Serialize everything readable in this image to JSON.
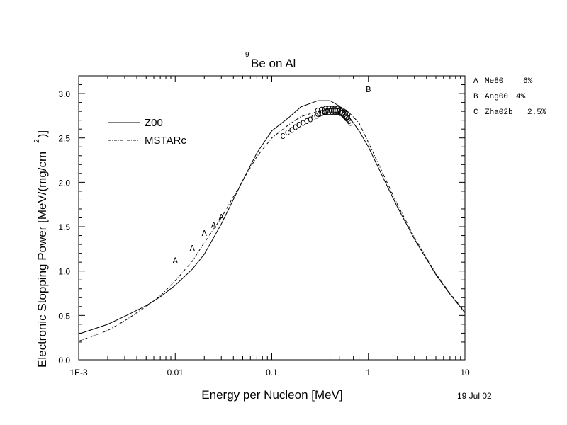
{
  "chart_data": {
    "type": "line",
    "title_sup": "9",
    "title": "Be on Al",
    "xlabel": "Energy per Nucleon [MeV]",
    "ylabel_main": "Electronic Stopping Power [MeV/(mg/cm",
    "ylabel_sup": "2",
    "ylabel_close": ")]",
    "x_scale": "log",
    "xlim": [
      0.001,
      10
    ],
    "ylim": [
      0.0,
      3.2
    ],
    "x_ticks": [
      {
        "value": 0.001,
        "label": "1E-3"
      },
      {
        "value": 0.01,
        "label": "0.01"
      },
      {
        "value": 0.1,
        "label": "0.1"
      },
      {
        "value": 1,
        "label": "1"
      },
      {
        "value": 10,
        "label": "10"
      }
    ],
    "y_ticks": [
      {
        "value": 0.0,
        "label": "0.0"
      },
      {
        "value": 0.5,
        "label": "0.5"
      },
      {
        "value": 1.0,
        "label": "1.0"
      },
      {
        "value": 1.5,
        "label": "1.5"
      },
      {
        "value": 2.0,
        "label": "2.0"
      },
      {
        "value": 2.5,
        "label": "2.5"
      },
      {
        "value": 3.0,
        "label": "3.0"
      }
    ],
    "date": "19 Jul 02",
    "legend_placement": "top-left",
    "series": [
      {
        "name": "Z00",
        "style": "solid",
        "x": [
          0.001,
          0.002,
          0.003,
          0.005,
          0.007,
          0.01,
          0.015,
          0.02,
          0.03,
          0.05,
          0.07,
          0.1,
          0.15,
          0.2,
          0.3,
          0.4,
          0.5,
          0.6,
          0.8,
          1.0,
          1.5,
          2.0,
          3.0,
          5.0,
          7.0,
          10.0
        ],
        "y": [
          0.29,
          0.4,
          0.49,
          0.61,
          0.71,
          0.84,
          1.02,
          1.19,
          1.53,
          2.02,
          2.33,
          2.58,
          2.73,
          2.85,
          2.92,
          2.92,
          2.86,
          2.77,
          2.58,
          2.4,
          2.0,
          1.72,
          1.36,
          0.96,
          0.74,
          0.53
        ]
      },
      {
        "name": "MSTARc",
        "style": "dash-dot",
        "x": [
          0.001,
          0.002,
          0.003,
          0.005,
          0.007,
          0.01,
          0.015,
          0.02,
          0.03,
          0.05,
          0.07,
          0.1,
          0.15,
          0.2,
          0.3,
          0.4,
          0.5,
          0.6,
          0.8,
          1.0,
          1.5,
          2.0,
          3.0,
          5.0,
          7.0,
          10.0
        ],
        "y": [
          0.21,
          0.33,
          0.44,
          0.6,
          0.72,
          0.89,
          1.11,
          1.32,
          1.6,
          2.02,
          2.29,
          2.5,
          2.65,
          2.74,
          2.8,
          2.83,
          2.84,
          2.81,
          2.67,
          2.45,
          2.04,
          1.75,
          1.38,
          0.97,
          0.75,
          0.54
        ]
      }
    ],
    "datasets": [
      {
        "marker": "A",
        "ref": "Me80",
        "error": "6%",
        "x": [
          0.01,
          0.015,
          0.02,
          0.025,
          0.03
        ],
        "y": [
          1.12,
          1.26,
          1.43,
          1.52,
          1.61
        ]
      },
      {
        "marker": "B",
        "ref": "Ang00",
        "error": "4%",
        "x": [
          1.0
        ],
        "y": [
          3.05
        ]
      },
      {
        "marker": "C",
        "ref": "Zha02b",
        "error": "2.5%",
        "x": [
          0.13,
          0.145,
          0.16,
          0.175,
          0.19,
          0.21,
          0.23,
          0.25,
          0.27,
          0.29,
          0.31,
          0.33,
          0.35,
          0.37,
          0.39,
          0.41,
          0.43,
          0.45,
          0.47,
          0.49,
          0.51,
          0.53,
          0.55,
          0.57,
          0.59,
          0.61,
          0.63,
          0.65
        ],
        "y": [
          2.52,
          2.56,
          2.59,
          2.62,
          2.65,
          2.67,
          2.69,
          2.71,
          2.73,
          2.75,
          2.77,
          2.78,
          2.79,
          2.8,
          2.81,
          2.81,
          2.81,
          2.81,
          2.81,
          2.8,
          2.79,
          2.78,
          2.76,
          2.74,
          2.72,
          2.71,
          2.69,
          2.67
        ]
      }
    ],
    "circles": {
      "x": [
        0.3,
        0.33,
        0.36,
        0.39,
        0.42,
        0.45,
        0.48,
        0.51,
        0.54,
        0.57,
        0.6
      ],
      "y": [
        2.79,
        2.8,
        2.81,
        2.81,
        2.81,
        2.81,
        2.81,
        2.8,
        2.79,
        2.77,
        2.75
      ]
    }
  }
}
